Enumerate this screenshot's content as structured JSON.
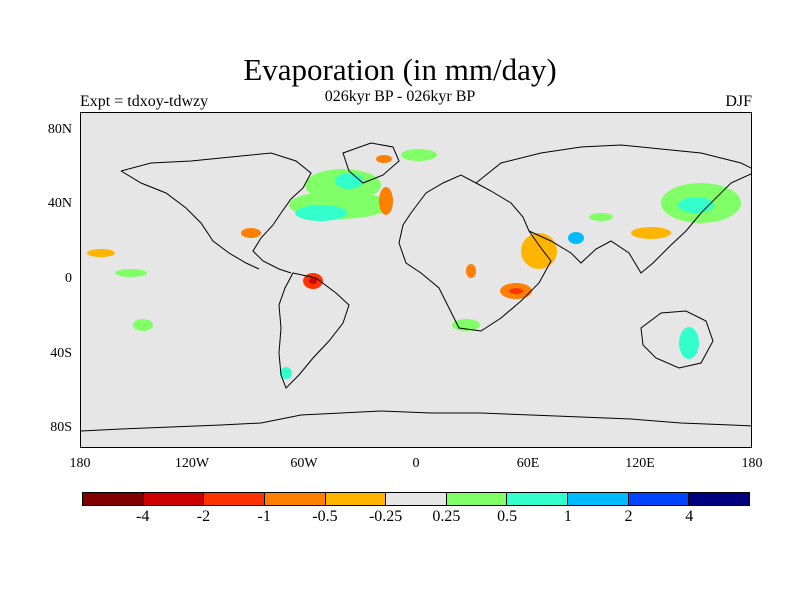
{
  "header": {
    "title": "Evaporation (in mm/day)",
    "subtitle": "026kyr BP - 026kyr BP",
    "left_label": "Expt = tdxoy-tdwzy",
    "right_label": "DJF"
  },
  "axes": {
    "y_ticks": [
      {
        "label": "80N",
        "lat": 80
      },
      {
        "label": "40N",
        "lat": 40
      },
      {
        "label": "0",
        "lat": 0
      },
      {
        "label": "40S",
        "lat": -40
      },
      {
        "label": "80S",
        "lat": -80
      }
    ],
    "x_ticks": [
      {
        "label": "180",
        "lon": -180
      },
      {
        "label": "120W",
        "lon": -120
      },
      {
        "label": "60W",
        "lon": -60
      },
      {
        "label": "0",
        "lon": 0
      },
      {
        "label": "60E",
        "lon": 60
      },
      {
        "label": "120E",
        "lon": 120
      },
      {
        "label": "180",
        "lon": 180
      }
    ],
    "lon_range": [
      -180,
      180
    ],
    "lat_range": [
      -90,
      90
    ]
  },
  "colorbar": {
    "colors": [
      "#800000",
      "#cc0000",
      "#ff3300",
      "#ff7f00",
      "#ffb400",
      "#e6e6e6",
      "#80ff66",
      "#33ffcc",
      "#00bbff",
      "#0044ff",
      "#000080"
    ],
    "labels": [
      "-4",
      "-2",
      "-1",
      "-0.5",
      "-0.25",
      "0.25",
      "0.5",
      "1",
      "2",
      "4"
    ]
  },
  "map_style": {
    "ocean_land_fill": "#e6e6e6",
    "coast_color": "#000000"
  }
}
